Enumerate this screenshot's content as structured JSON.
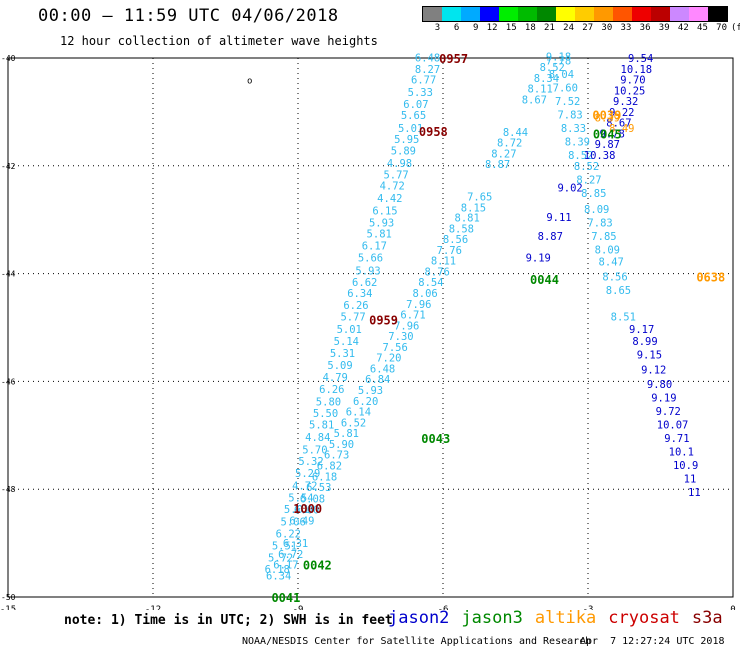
{
  "header": {
    "title": "00:00 – 11:59 UTC 04/06/2018",
    "subtitle": "12 hour collection of altimeter wave heights"
  },
  "colorbar": {
    "labels": [
      "3",
      "6",
      "9",
      "12",
      "15",
      "18",
      "21",
      "24",
      "27",
      "30",
      "33",
      "36",
      "39",
      "42",
      "45",
      "70"
    ],
    "unit": "(ft)",
    "colors": [
      "#808080",
      "#00e5ee",
      "#00aaff",
      "#0000ff",
      "#00ee00",
      "#00bb00",
      "#008800",
      "#ffff00",
      "#ffcc00",
      "#ff9900",
      "#ff5500",
      "#ee0000",
      "#bb0000",
      "#cc88ff",
      "#ff88ff",
      "#000000"
    ]
  },
  "series_colors": {
    "light": "#33bbee",
    "dark": "#0000cc",
    "orange": "#ff9900",
    "time_jason3": "#008800",
    "time_cryosat": "#880000"
  },
  "chart_data": {
    "type": "scatter",
    "xlim": [
      -15,
      0
    ],
    "ylim": [
      -50,
      -40
    ],
    "xticks": [
      "-15",
      "-12",
      "-9",
      "-6",
      "-3",
      "0"
    ],
    "yticks": [
      "-40",
      "-42",
      "-44",
      "-46",
      "-48",
      "-50"
    ],
    "grid": true,
    "tracks": [
      {
        "c": "light",
        "pts": [
          [
            -6.32,
            -39.99,
            "6.48"
          ],
          [
            -6.32,
            -40.2,
            "8.27"
          ],
          [
            -6.4,
            -40.4,
            "6.77"
          ],
          [
            -6.47,
            -40.63,
            "5.33"
          ],
          [
            -6.56,
            -40.85,
            "6.07"
          ],
          [
            -6.61,
            -41.06,
            "5.65"
          ],
          [
            -6.67,
            -41.3,
            "5.01"
          ],
          [
            -6.75,
            -41.5,
            "5.95"
          ],
          [
            -6.82,
            -41.72,
            "5.89"
          ],
          [
            -6.9,
            -41.95,
            "4.98"
          ],
          [
            -6.97,
            -42.16,
            "5.77"
          ],
          [
            -7.05,
            -42.37,
            "4.72"
          ],
          [
            -7.1,
            -42.6,
            "4.42"
          ],
          [
            -7.2,
            -42.83,
            "6.15"
          ],
          [
            -7.27,
            -43.05,
            "5.93"
          ],
          [
            -7.32,
            -43.26,
            "5.81"
          ],
          [
            -7.42,
            -43.48,
            "6.17"
          ],
          [
            -7.5,
            -43.7,
            "5.66"
          ],
          [
            -7.55,
            -43.94,
            "5.93"
          ],
          [
            -7.62,
            -44.16,
            "6.62"
          ],
          [
            -7.72,
            -44.36,
            "6.34"
          ],
          [
            -7.8,
            -44.58,
            "6.26"
          ],
          [
            -7.86,
            -44.8,
            "5.77"
          ],
          [
            -7.94,
            -45.03,
            "5.01"
          ],
          [
            -8.0,
            -45.25,
            "5.14"
          ],
          [
            -8.08,
            -45.47,
            "5.31"
          ],
          [
            -8.13,
            -45.7,
            "5.09"
          ],
          [
            -8.23,
            -45.92,
            "4.79"
          ],
          [
            -8.3,
            -46.14,
            "6.26"
          ],
          [
            -8.37,
            -46.37,
            "5.80"
          ],
          [
            -8.43,
            -46.59,
            "5.50"
          ],
          [
            -8.51,
            -46.8,
            "5.81"
          ],
          [
            -8.59,
            -47.03,
            "4.84"
          ],
          [
            -8.65,
            -47.26,
            "5.70"
          ],
          [
            -8.73,
            -47.48,
            "5.32"
          ],
          [
            -8.8,
            -47.7,
            "5.29"
          ],
          [
            -8.86,
            -47.93,
            "4.72"
          ],
          [
            -8.94,
            -48.15,
            "5.54"
          ],
          [
            -9.03,
            -48.37,
            "5.01"
          ],
          [
            -9.1,
            -48.6,
            "5.06"
          ],
          [
            -9.2,
            -48.82,
            "6.22"
          ],
          [
            -9.28,
            -49.04,
            "5.51"
          ],
          [
            -9.36,
            -49.27,
            "5.72"
          ],
          [
            -9.43,
            -49.48,
            "6.18"
          ]
        ]
      },
      {
        "c": "light",
        "pts": [
          [
            -9.05,
            -49.0,
            "6.31"
          ],
          [
            -9.15,
            -49.2,
            "6.72"
          ],
          [
            -9.25,
            -49.4,
            "6.17"
          ],
          [
            -9.4,
            -49.6,
            "6.34"
          ],
          [
            -8.92,
            -48.58,
            "6.49"
          ],
          [
            -8.82,
            -48.38,
            "6.00"
          ],
          [
            -8.7,
            -48.17,
            "6.08"
          ],
          [
            -8.57,
            -47.96,
            "6.53"
          ],
          [
            -8.45,
            -47.76,
            "6.18"
          ],
          [
            -8.35,
            -47.56,
            "6.82"
          ],
          [
            -8.2,
            -47.36,
            "6.73"
          ],
          [
            -8.1,
            -47.16,
            "5.90"
          ],
          [
            -8.0,
            -46.96,
            "5.81"
          ],
          [
            -7.85,
            -46.76,
            "6.52"
          ],
          [
            -7.75,
            -46.56,
            "6.14"
          ],
          [
            -7.6,
            -46.36,
            "6.20"
          ],
          [
            -7.5,
            -46.16,
            "5.93"
          ],
          [
            -7.35,
            -45.96,
            "6.84"
          ],
          [
            -7.25,
            -45.76,
            "6.48"
          ],
          [
            -7.12,
            -45.56,
            "7.20"
          ],
          [
            -6.99,
            -45.36,
            "7.56"
          ],
          [
            -6.87,
            -45.16,
            "7.30"
          ],
          [
            -6.75,
            -44.96,
            "7.96"
          ],
          [
            -6.62,
            -44.76,
            "6.71"
          ],
          [
            -6.5,
            -44.56,
            "7.96"
          ],
          [
            -6.37,
            -44.36,
            "8.06"
          ],
          [
            -6.25,
            -44.16,
            "8.54"
          ],
          [
            -6.12,
            -43.96,
            "8.76"
          ],
          [
            -5.99,
            -43.76,
            "8.11"
          ],
          [
            -5.87,
            -43.56,
            "7.76"
          ],
          [
            -5.74,
            -43.36,
            "8.56"
          ],
          [
            -5.62,
            -43.16,
            "8.58"
          ],
          [
            -5.5,
            -42.96,
            "8.81"
          ],
          [
            -5.37,
            -42.77,
            "8.15"
          ],
          [
            -5.24,
            -42.57,
            "7.65"
          ],
          [
            -4.87,
            -41.97,
            "8.87"
          ],
          [
            -4.74,
            -41.77,
            "8.27"
          ],
          [
            -4.62,
            -41.57,
            "8.72"
          ],
          [
            -4.5,
            -41.37,
            "8.44"
          ],
          [
            -4.11,
            -40.77,
            "8.67"
          ],
          [
            -3.99,
            -40.57,
            "8.11"
          ],
          [
            -3.86,
            -40.37,
            "8.34"
          ],
          [
            -3.74,
            -40.17,
            "8.52"
          ],
          [
            -3.61,
            -39.97,
            "9.18"
          ]
        ]
      },
      {
        "c": "light",
        "pts": [
          [
            -3.61,
            -40.05,
            "7.78"
          ],
          [
            -3.55,
            -40.3,
            "8.04"
          ],
          [
            -3.47,
            -40.55,
            "7.60"
          ],
          [
            -3.42,
            -40.8,
            "7.52"
          ],
          [
            -3.37,
            -41.05,
            "7.83"
          ],
          [
            -3.3,
            -41.3,
            "8.33"
          ],
          [
            -3.22,
            -41.55,
            "8.39"
          ],
          [
            -3.15,
            -41.8,
            "8.52"
          ],
          [
            -3.03,
            -42.0,
            "8.52"
          ],
          [
            -2.98,
            -42.25,
            "8.27"
          ],
          [
            -2.88,
            -42.5,
            "8.85"
          ],
          [
            -2.82,
            -42.8,
            "8.09"
          ],
          [
            -2.75,
            -43.05,
            "7.83"
          ],
          [
            -2.67,
            -43.3,
            "7.85"
          ],
          [
            -2.6,
            -43.55,
            "8.09"
          ],
          [
            -2.52,
            -43.78,
            "8.47"
          ],
          [
            -2.44,
            -44.05,
            "8.56"
          ],
          [
            -2.37,
            -44.3,
            "8.65"
          ],
          [
            -2.27,
            -44.8,
            "8.51"
          ]
        ]
      },
      {
        "c": "dark",
        "pts": [
          [
            -1.91,
            -40.0,
            "9.54"
          ],
          [
            -2.0,
            -40.2,
            "10.18"
          ],
          [
            -2.07,
            -40.4,
            "9.70"
          ],
          [
            -2.14,
            -40.6,
            "10.25"
          ],
          [
            -2.22,
            -40.8,
            "9.32"
          ],
          [
            -2.3,
            -41.0,
            "9.22"
          ],
          [
            -2.36,
            -41.2,
            "8.67"
          ],
          [
            -2.5,
            -41.4,
            "9.78"
          ],
          [
            -2.6,
            -41.6,
            "9.87"
          ],
          [
            -2.76,
            -41.8,
            "10.38"
          ],
          [
            -3.37,
            -42.4,
            "9.02"
          ],
          [
            -3.6,
            -42.95,
            "9.11"
          ],
          [
            -3.78,
            -43.3,
            "8.87"
          ],
          [
            -4.03,
            -43.7,
            "9.19"
          ],
          [
            -1.89,
            -45.03,
            "9.17"
          ],
          [
            -1.82,
            -45.25,
            "8.99"
          ],
          [
            -1.73,
            -45.5,
            "9.15"
          ],
          [
            -1.64,
            -45.78,
            "9.12"
          ],
          [
            -1.52,
            -46.05,
            "9.80"
          ],
          [
            -1.43,
            -46.3,
            "9.19"
          ],
          [
            -1.34,
            -46.55,
            "9.72"
          ],
          [
            -1.25,
            -46.8,
            "10.07"
          ],
          [
            -1.16,
            -47.05,
            "9.71"
          ],
          [
            -1.07,
            -47.3,
            "10.1"
          ],
          [
            -0.98,
            -47.55,
            "10.9"
          ],
          [
            -0.89,
            -47.8,
            "11"
          ],
          [
            -0.8,
            -48.05,
            "11"
          ]
        ]
      },
      {
        "c": "orange",
        "pts": [
          [
            -2.6,
            -41.1,
            "8.39"
          ],
          [
            -2.3,
            -41.3,
            "8.49"
          ]
        ]
      }
    ],
    "time_labels": [
      {
        "t": "0957",
        "x": -5.78,
        "y": -40,
        "c": "time_cryosat"
      },
      {
        "t": "0958",
        "x": -6.2,
        "y": -41.35,
        "c": "time_cryosat"
      },
      {
        "t": "0959",
        "x": -7.23,
        "y": -44.85,
        "c": "time_cryosat"
      },
      {
        "t": "1000",
        "x": -8.8,
        "y": -48.35,
        "c": "time_cryosat"
      },
      {
        "t": "0039",
        "x": -2.61,
        "y": -41.05,
        "c": "orange"
      },
      {
        "t": "0045",
        "x": -2.6,
        "y": -41.4,
        "c": "time_jason3"
      },
      {
        "t": "0044",
        "x": -3.9,
        "y": -44.1,
        "c": "time_jason3"
      },
      {
        "t": "0043",
        "x": -6.15,
        "y": -47.05,
        "c": "time_jason3"
      },
      {
        "t": "0042",
        "x": -8.6,
        "y": -49.4,
        "c": "time_jason3"
      },
      {
        "t": "0041",
        "x": -9.25,
        "y": -50.0,
        "c": "time_jason3"
      },
      {
        "t": "0638",
        "x": -0.46,
        "y": -44.05,
        "c": "orange"
      }
    ],
    "land_mark": {
      "t": "o",
      "x": -10.0,
      "y": -40.4
    }
  },
  "footer": {
    "note": "note: 1) Time is in UTC; 2) SWH is in feet",
    "legend": [
      {
        "name": "jason2",
        "color": "#0000cc"
      },
      {
        "name": "jason3",
        "color": "#008800"
      },
      {
        "name": "altika",
        "color": "#ff9900"
      },
      {
        "name": "cryosat",
        "color": "#cc0000"
      },
      {
        "name": "s3a",
        "color": "#880000"
      }
    ],
    "credit": "NOAA/NESDIS Center for Satellite Applications and Research",
    "timestamp": "Apr  7 12:27:24 UTC 2018"
  }
}
